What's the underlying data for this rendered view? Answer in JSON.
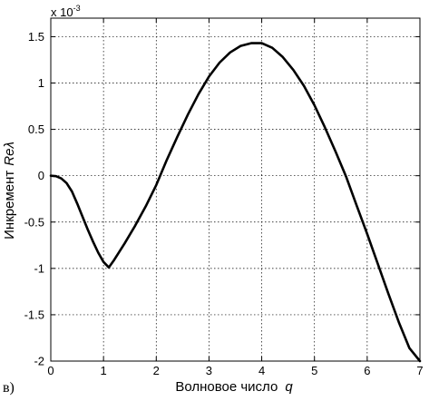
{
  "chart_data": {
    "type": "line",
    "xlabel": "Волновое число",
    "xlabel_symbol": "q",
    "ylabel": "Инкремент",
    "ylabel_symbol": "Reλ",
    "scale_note": "x 10",
    "scale_exponent": "-3",
    "xlim": [
      0,
      7
    ],
    "ylim": [
      -2,
      1.7
    ],
    "xticks": [
      "0",
      "1",
      "2",
      "3",
      "4",
      "5",
      "6",
      "7"
    ],
    "yticks": [
      "1.5",
      "1",
      "0.5",
      "0",
      "-0.5",
      "-1",
      "-1.5",
      "-2"
    ],
    "grid": true,
    "series": [
      {
        "x": [
          0,
          0.1,
          0.2,
          0.3,
          0.4,
          0.5,
          0.6,
          0.7,
          0.8,
          0.9,
          1.0,
          1.1,
          1.2,
          1.3,
          1.4,
          1.6,
          1.8,
          2.0,
          2.2,
          2.4,
          2.6,
          2.8,
          3.0,
          3.2,
          3.4,
          3.6,
          3.8,
          4.0,
          4.2,
          4.4,
          4.6,
          4.8,
          5.0,
          5.2,
          5.4,
          5.6,
          5.8,
          6.0,
          6.2,
          6.4,
          6.6,
          6.8,
          7.0
        ],
        "y": [
          0,
          -0.005,
          -0.03,
          -0.08,
          -0.17,
          -0.3,
          -0.44,
          -0.58,
          -0.71,
          -0.83,
          -0.93,
          -0.99,
          -0.91,
          -0.82,
          -0.73,
          -0.54,
          -0.33,
          -0.1,
          0.17,
          0.42,
          0.66,
          0.88,
          1.07,
          1.22,
          1.33,
          1.4,
          1.43,
          1.43,
          1.38,
          1.28,
          1.14,
          0.97,
          0.76,
          0.52,
          0.26,
          -0.01,
          -0.32,
          -0.63,
          -0.95,
          -1.27,
          -1.58,
          -1.86,
          -2.0
        ]
      }
    ]
  },
  "panel_label": "в)"
}
